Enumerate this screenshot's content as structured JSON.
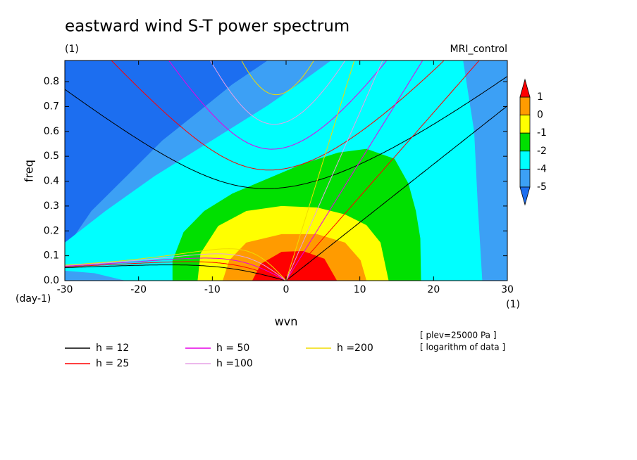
{
  "chart_data": {
    "type": "contour",
    "title": "eastward wind S-T power spectrum",
    "subtitle_left": "(1)",
    "subtitle_right": "MRI_control",
    "x_label": "wvn",
    "x_unit": "(1)",
    "y_label": "freq",
    "y_unit": "(day-1)",
    "annotations": [
      "[ plev=25000 Pa ]",
      "[ logarithm of data ]"
    ],
    "xlim": [
      -30,
      30
    ],
    "ylim": [
      0,
      0.885
    ],
    "xticks": [
      -30,
      -20,
      -10,
      0,
      10,
      20,
      30
    ],
    "yticks": [
      {
        "value": 0,
        "label": "0.0"
      },
      0.1,
      0.2,
      0.3,
      0.4,
      0.5,
      0.6,
      0.7,
      0.8
    ],
    "colorbar": {
      "levels": [
        -5,
        -4,
        -2,
        -1,
        0,
        1
      ],
      "colors": [
        "#1c6ef0",
        "#3ca0f5",
        "#00ffff",
        "#00e000",
        "#ffff00",
        "#ff9b00",
        "#ff0000"
      ]
    },
    "contours": [
      {
        "level": -5,
        "x": [
          -30,
          -30,
          -26.4,
          -21.6,
          -16.8,
          -12,
          -7.3,
          -2.5,
          30,
          30
        ],
        "y": [
          0,
          0.124,
          0.28,
          0.421,
          0.563,
          0.676,
          0.789,
          0.885,
          0.885,
          0
        ]
      },
      {
        "level": -4,
        "x": [
          -21.8,
          -26,
          -30,
          -30,
          -24.5,
          -17.8,
          -10.1,
          -2.5,
          2.3,
          6.1,
          24,
          25.5,
          26,
          26.6
        ],
        "y": [
          0,
          0.03,
          0.04,
          0.153,
          0.28,
          0.421,
          0.563,
          0.704,
          0.803,
          0.885,
          0.885,
          0.6,
          0.3,
          0
        ]
      },
      {
        "level": -2,
        "x": [
          -15.4,
          -15.4,
          -13.9,
          -11.1,
          -7.3,
          -2.5,
          2.3,
          7.1,
          10.9,
          14.7,
          16.6,
          17.6,
          18.2,
          18.3
        ],
        "y": [
          0,
          0.08,
          0.195,
          0.28,
          0.35,
          0.41,
          0.47,
          0.515,
          0.53,
          0.49,
          0.39,
          0.28,
          0.17,
          0
        ]
      },
      {
        "level": -1,
        "x": [
          -12,
          -11.6,
          -9.2,
          -5.4,
          -0.6,
          4.2,
          8,
          10.9,
          12.8,
          13.9
        ],
        "y": [
          0,
          0.11,
          0.22,
          0.28,
          0.3,
          0.294,
          0.266,
          0.223,
          0.153,
          0
        ]
      },
      {
        "level": 0,
        "x": [
          -8.6,
          -7.7,
          -5.4,
          -0.6,
          4.2,
          8,
          10.1,
          10.9
        ],
        "y": [
          0,
          0.082,
          0.153,
          0.187,
          0.187,
          0.153,
          0.082,
          0
        ]
      },
      {
        "level": 1,
        "x": [
          -4.6,
          -3.4,
          -0.6,
          2.3,
          5.2,
          6.9
        ],
        "y": [
          0,
          0.068,
          0.116,
          0.119,
          0.088,
          0
        ]
      }
    ],
    "series": [
      {
        "name": "h = 12",
        "h": 12,
        "color": "#000000"
      },
      {
        "name": "h = 25",
        "h": 25,
        "color": "#ff0000"
      },
      {
        "name": "h = 50",
        "h": 50,
        "color": "#e600e6"
      },
      {
        "name": "h =100",
        "h": 100,
        "color": "#e6a0e6"
      },
      {
        "name": "h =200",
        "h": 200,
        "color": "#f0dc00"
      }
    ]
  }
}
